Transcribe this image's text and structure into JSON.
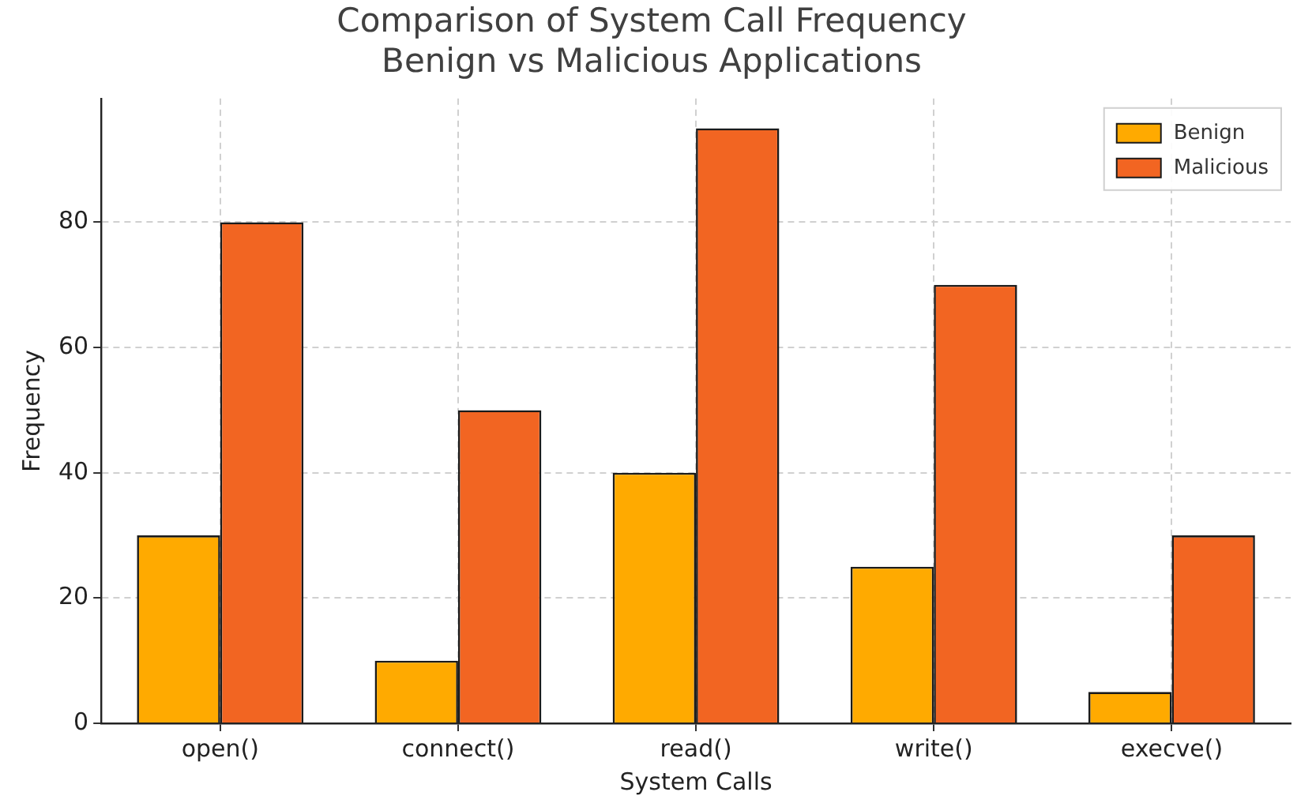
{
  "chart_data": {
    "type": "bar",
    "title": "Comparison of System Call Frequency\nBenign vs Malicious Applications",
    "xlabel": "System Calls",
    "ylabel": "Frequency",
    "categories": [
      "open()",
      "connect()",
      "read()",
      "write()",
      "execve()"
    ],
    "series": [
      {
        "name": "Benign",
        "color": "#ffaa00",
        "values": [
          30,
          10,
          40,
          25,
          5
        ]
      },
      {
        "name": "Malicious",
        "color": "#f26522",
        "values": [
          80,
          50,
          95,
          70,
          30
        ]
      }
    ],
    "ylim": [
      0,
      99.75
    ],
    "yticks": [
      0,
      20,
      40,
      60,
      80
    ],
    "grid": true,
    "legend": "top right"
  }
}
